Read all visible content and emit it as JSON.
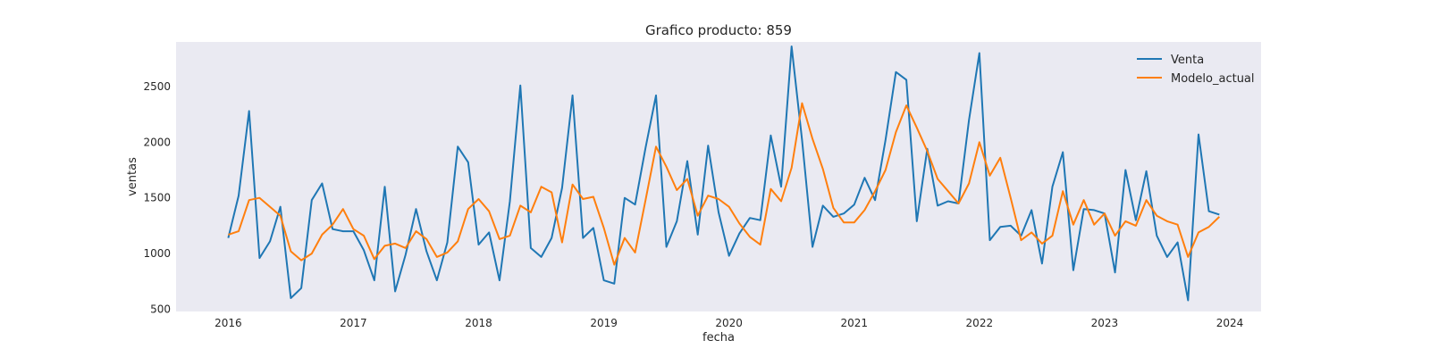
{
  "chart_data": {
    "type": "line",
    "title": "Grafico producto: 859",
    "xlabel": "fecha",
    "ylabel": "ventas",
    "xlim": [
      "2015-08-01",
      "2024-04-01"
    ],
    "ylim": [
      480,
      2900
    ],
    "x_ticks": [
      "2016",
      "2017",
      "2018",
      "2019",
      "2020",
      "2021",
      "2022",
      "2023",
      "2024"
    ],
    "y_ticks": [
      "500",
      "1000",
      "1500",
      "2000",
      "2500"
    ],
    "grid": false,
    "legend": "top-right",
    "colors": {
      "Venta": "#1f77b4",
      "Modelo_actual": "#ff7f0e",
      "plot_background": "#eaeaf2"
    },
    "series": [
      {
        "name": "Venta",
        "start": "2016-01",
        "frequency": "monthly",
        "values": [
          1140,
          1520,
          2280,
          960,
          1110,
          1420,
          600,
          690,
          1480,
          1630,
          1220,
          1200,
          1200,
          1030,
          760,
          1600,
          660,
          990,
          1400,
          1020,
          760,
          1100,
          1960,
          1820,
          1080,
          1190,
          760,
          1470,
          2510,
          1050,
          970,
          1140,
          1590,
          2420,
          1140,
          1230,
          760,
          730,
          1500,
          1440,
          1950,
          2420,
          1060,
          1290,
          1830,
          1170,
          1970,
          1370,
          980,
          1180,
          1320,
          1300,
          2060,
          1600,
          2860,
          2020,
          1060,
          1430,
          1330,
          1360,
          1440,
          1680,
          1480,
          2020,
          2630,
          2560,
          1290,
          1940,
          1430,
          1470,
          1450,
          2200,
          2800,
          1120,
          1240,
          1250,
          1160,
          1390,
          910,
          1600,
          1910,
          850,
          1400,
          1390,
          1360,
          830,
          1750,
          1300,
          1740,
          1160,
          970,
          1100,
          580,
          2070,
          1380,
          1350
        ]
      },
      {
        "name": "Modelo_actual",
        "start": "2016-01",
        "frequency": "monthly",
        "values": [
          1170,
          1200,
          1480,
          1500,
          1420,
          1340,
          1020,
          940,
          1000,
          1170,
          1260,
          1400,
          1220,
          1160,
          950,
          1070,
          1090,
          1050,
          1200,
          1130,
          970,
          1010,
          1110,
          1400,
          1490,
          1380,
          1130,
          1160,
          1430,
          1370,
          1600,
          1550,
          1100,
          1620,
          1490,
          1510,
          1230,
          900,
          1140,
          1010,
          1480,
          1960,
          1780,
          1570,
          1670,
          1340,
          1520,
          1490,
          1420,
          1270,
          1150,
          1080,
          1580,
          1470,
          1770,
          2350,
          2030,
          1760,
          1410,
          1280,
          1280,
          1390,
          1560,
          1750,
          2090,
          2330,
          2130,
          1920,
          1670,
          1560,
          1450,
          1630,
          2000,
          1700,
          1860,
          1500,
          1120,
          1190,
          1090,
          1160,
          1560,
          1260,
          1480,
          1260,
          1360,
          1160,
          1290,
          1250,
          1480,
          1340,
          1290,
          1260,
          970,
          1190,
          1240,
          1330
        ]
      }
    ]
  }
}
